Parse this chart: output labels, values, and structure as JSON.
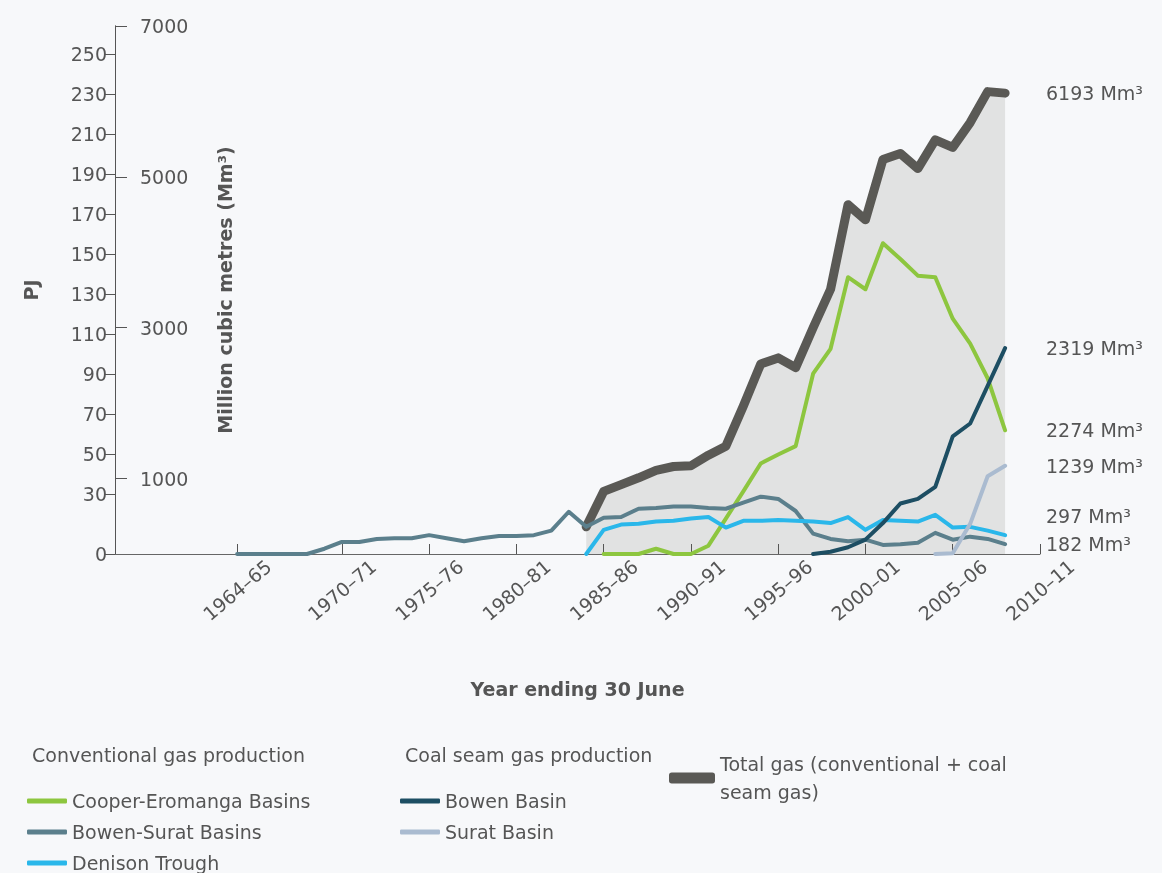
{
  "chart_data": {
    "type": "line",
    "xlabel": "Year ending 30 June",
    "ylabel": "PJ",
    "y2label": "Million cubic metres (Mm³)",
    "categories": [
      null,
      null,
      null,
      null,
      null,
      null,
      null,
      "1964–65",
      null,
      null,
      null,
      null,
      null,
      "1970–71",
      null,
      null,
      null,
      null,
      "1975–76",
      null,
      null,
      null,
      null,
      "1980–81",
      null,
      null,
      null,
      null,
      "1985–86",
      null,
      null,
      null,
      null,
      "1990–91",
      null,
      null,
      null,
      null,
      "1995–96",
      null,
      null,
      null,
      null,
      "2000–01",
      null,
      null,
      null,
      null,
      "2005–06",
      null,
      null,
      null,
      null,
      "2010–11"
    ],
    "ylim": [
      0,
      264
    ],
    "yticks": [
      0,
      30,
      50,
      70,
      90,
      110,
      130,
      150,
      170,
      190,
      210,
      230,
      250
    ],
    "y2lim": [
      0,
      7000
    ],
    "y2ticks": [
      1000,
      3000,
      5000,
      7000
    ],
    "grid": false,
    "legend": "bottom",
    "marker": "none",
    "line_style": "solid",
    "series": [
      {
        "name": "Cooper-Eromanga Basins",
        "color": "#8dc63f",
        "axis": "y2",
        "values": [
          null,
          null,
          null,
          null,
          null,
          null,
          null,
          null,
          null,
          null,
          null,
          null,
          null,
          null,
          null,
          null,
          null,
          null,
          null,
          null,
          null,
          null,
          null,
          null,
          null,
          null,
          null,
          null,
          0,
          0,
          0,
          70,
          0,
          0,
          110,
          470,
          830,
          1200,
          1320,
          1430,
          2390,
          2720,
          3670,
          3510,
          4120,
          3910,
          3690,
          3670,
          3120,
          2790,
          2330,
          1640,
          null,
          null
        ]
      },
      {
        "name": "Bowen-Surat Basins",
        "color": "#5b7f8c",
        "axis": "y2",
        "values": [
          null,
          null,
          null,
          null,
          null,
          null,
          null,
          0,
          0,
          0,
          0,
          0,
          70,
          160,
          160,
          200,
          210,
          210,
          250,
          210,
          170,
          210,
          240,
          240,
          250,
          310,
          560,
          360,
          480,
          490,
          600,
          610,
          630,
          630,
          610,
          600,
          680,
          760,
          730,
          570,
          270,
          200,
          170,
          190,
          120,
          130,
          150,
          280,
          190,
          230,
          200,
          130,
          null,
          null
        ]
      },
      {
        "name": "Denison Trough",
        "color": "#2ab7ea",
        "axis": "y2",
        "values": [
          null,
          null,
          null,
          null,
          null,
          null,
          null,
          null,
          null,
          null,
          null,
          null,
          null,
          null,
          null,
          null,
          null,
          null,
          null,
          null,
          null,
          null,
          null,
          null,
          null,
          null,
          null,
          0,
          320,
          390,
          400,
          430,
          440,
          470,
          490,
          350,
          440,
          440,
          450,
          440,
          430,
          410,
          490,
          320,
          450,
          440,
          430,
          520,
          350,
          360,
          310,
          250,
          null,
          null
        ]
      },
      {
        "name": "Bowen Basin",
        "color": "#1d4e63",
        "axis": "y2",
        "values": [
          null,
          null,
          null,
          null,
          null,
          null,
          null,
          null,
          null,
          null,
          null,
          null,
          null,
          null,
          null,
          null,
          null,
          null,
          null,
          null,
          null,
          null,
          null,
          null,
          null,
          null,
          null,
          null,
          null,
          null,
          null,
          null,
          null,
          null,
          null,
          null,
          null,
          null,
          null,
          null,
          0,
          30,
          90,
          190,
          410,
          670,
          730,
          890,
          1560,
          1730,
          2230,
          2730,
          null,
          null
        ]
      },
      {
        "name": "Surat Basin",
        "color": "#aabbd0",
        "axis": "y2",
        "values": [
          null,
          null,
          null,
          null,
          null,
          null,
          null,
          null,
          null,
          null,
          null,
          null,
          null,
          null,
          null,
          null,
          null,
          null,
          null,
          null,
          null,
          null,
          null,
          null,
          null,
          null,
          null,
          null,
          null,
          null,
          null,
          null,
          null,
          null,
          null,
          null,
          null,
          null,
          null,
          null,
          null,
          null,
          null,
          null,
          null,
          null,
          null,
          0,
          10,
          400,
          1030,
          1170,
          null,
          null
        ]
      },
      {
        "name": "Total gas (conventional + coal seam gas)",
        "type": "area",
        "color": "#5a5955",
        "axis": "y2",
        "values": [
          null,
          null,
          null,
          null,
          null,
          null,
          null,
          null,
          null,
          null,
          null,
          null,
          null,
          null,
          null,
          null,
          null,
          null,
          null,
          null,
          null,
          null,
          null,
          null,
          null,
          null,
          null,
          360,
          830,
          920,
          1010,
          1110,
          1160,
          1170,
          1310,
          1430,
          1960,
          2520,
          2600,
          2470,
          3000,
          3510,
          4630,
          4430,
          5230,
          5310,
          5110,
          5490,
          5390,
          5720,
          6130,
          6110,
          null,
          null
        ]
      }
    ],
    "annotations": [
      "Conventional gas production",
      "Coal seam gas production",
      "6193 Mm³",
      "2319 Mm³",
      "2274 Mm³",
      "1239 Mm³",
      "297 Mm³",
      "182 Mm³"
    ]
  }
}
